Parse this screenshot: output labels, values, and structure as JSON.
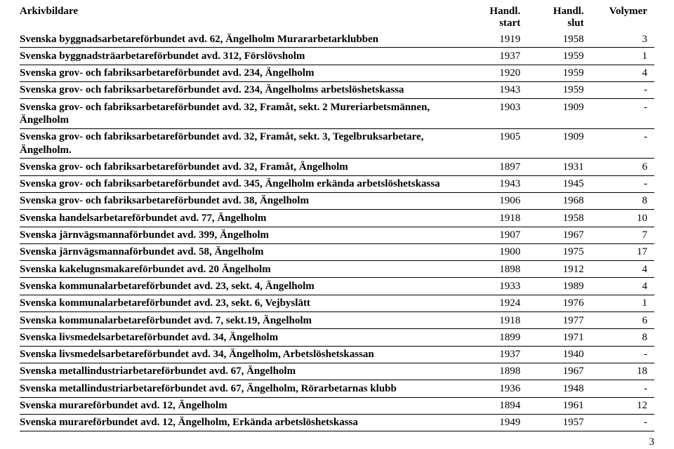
{
  "header": {
    "col1": "Arkivbildare",
    "col2a": "Handl.",
    "col2b": "start",
    "col3a": "Handl.",
    "col3b": "slut",
    "col4": "Volymer"
  },
  "rows": [
    {
      "label": "Svenska byggnadsarbetareförbundet avd. 62, Ängelholm Murararbetarklubben",
      "start": "1919",
      "slut": "1958",
      "vol": "3"
    },
    {
      "label": "Svenska byggnadsträarbetareförbundet avd. 312, Förslövsholm",
      "start": "1937",
      "slut": "1959",
      "vol": "1"
    },
    {
      "label": "Svenska grov- och fabriksarbetareförbundet avd. 234, Ängelholm",
      "start": "1920",
      "slut": "1959",
      "vol": "4"
    },
    {
      "label": "Svenska grov- och fabriksarbetareförbundet avd. 234, Ängelholms arbetslöshetskassa",
      "start": "1943",
      "slut": "1959",
      "vol": "-"
    },
    {
      "label": "Svenska grov- och fabriksarbetareförbundet avd. 32, Framåt, sekt. 2 Mureriarbetsmännen, Ängelholm",
      "start": "1903",
      "slut": "1909",
      "vol": "-"
    },
    {
      "label": "Svenska grov- och fabriksarbetareförbundet avd. 32, Framåt, sekt. 3, Tegelbruksarbetare, Ängelholm.",
      "start": "1905",
      "slut": "1909",
      "vol": "-"
    },
    {
      "label": "Svenska grov- och fabriksarbetareförbundet avd. 32, Framåt, Ängelholm",
      "start": "1897",
      "slut": "1931",
      "vol": "6"
    },
    {
      "label": "Svenska grov- och fabriksarbetareförbundet avd. 345, Ängelholm erkända arbetslöshetskassa",
      "start": "1943",
      "slut": "1945",
      "vol": "-"
    },
    {
      "label": "Svenska grov- och fabriksarbetareförbundet avd. 38, Ängelholm",
      "start": "1906",
      "slut": "1968",
      "vol": "8"
    },
    {
      "label": "Svenska handelsarbetareförbundet avd. 77, Ängelholm",
      "start": "1918",
      "slut": "1958",
      "vol": "10"
    },
    {
      "label": "Svenska järnvägsmannaförbundet avd. 399, Ängelholm",
      "start": "1907",
      "slut": "1967",
      "vol": "7"
    },
    {
      "label": "Svenska järnvägsmannaförbundet avd. 58, Ängelholm",
      "start": "1900",
      "slut": "1975",
      "vol": "17"
    },
    {
      "label": "Svenska kakelugnsmakareförbundet avd. 20 Ängelholm",
      "start": "1898",
      "slut": "1912",
      "vol": "4"
    },
    {
      "label": "Svenska kommunalarbetareförbundet avd. 23, sekt. 4, Ängelholm",
      "start": "1933",
      "slut": "1989",
      "vol": "4"
    },
    {
      "label": "Svenska kommunalarbetareförbundet avd. 23, sekt. 6, Vejbyslätt",
      "start": "1924",
      "slut": "1976",
      "vol": "1"
    },
    {
      "label": "Svenska kommunalarbetareförbundet avd. 7, sekt.19, Ängelholm",
      "start": "1918",
      "slut": "1977",
      "vol": "6"
    },
    {
      "label": "Svenska livsmedelsarbetareförbundet avd. 34, Ängelholm",
      "start": "1899",
      "slut": "1971",
      "vol": "8"
    },
    {
      "label": "Svenska livsmedelsarbetareförbundet avd. 34, Ängelholm, Arbetslöshetskassan",
      "start": "1937",
      "slut": "1940",
      "vol": "-"
    },
    {
      "label": "Svenska metallindustriarbetareförbundet avd. 67, Ängelholm",
      "start": "1898",
      "slut": "1967",
      "vol": "18"
    },
    {
      "label": "Svenska metallindustriarbetareförbundet avd. 67, Ängelholm, Rörarbetarnas klubb",
      "start": "1936",
      "slut": "1948",
      "vol": "-"
    },
    {
      "label": "Svenska murareförbundet avd. 12, Ängelholm",
      "start": "1894",
      "slut": "1961",
      "vol": "12"
    },
    {
      "label": "Svenska murareförbundet avd. 12, Ängelholm, Erkända arbetslöshetskassa",
      "start": "1949",
      "slut": "1957",
      "vol": "-"
    }
  ],
  "pageNumber": "3"
}
